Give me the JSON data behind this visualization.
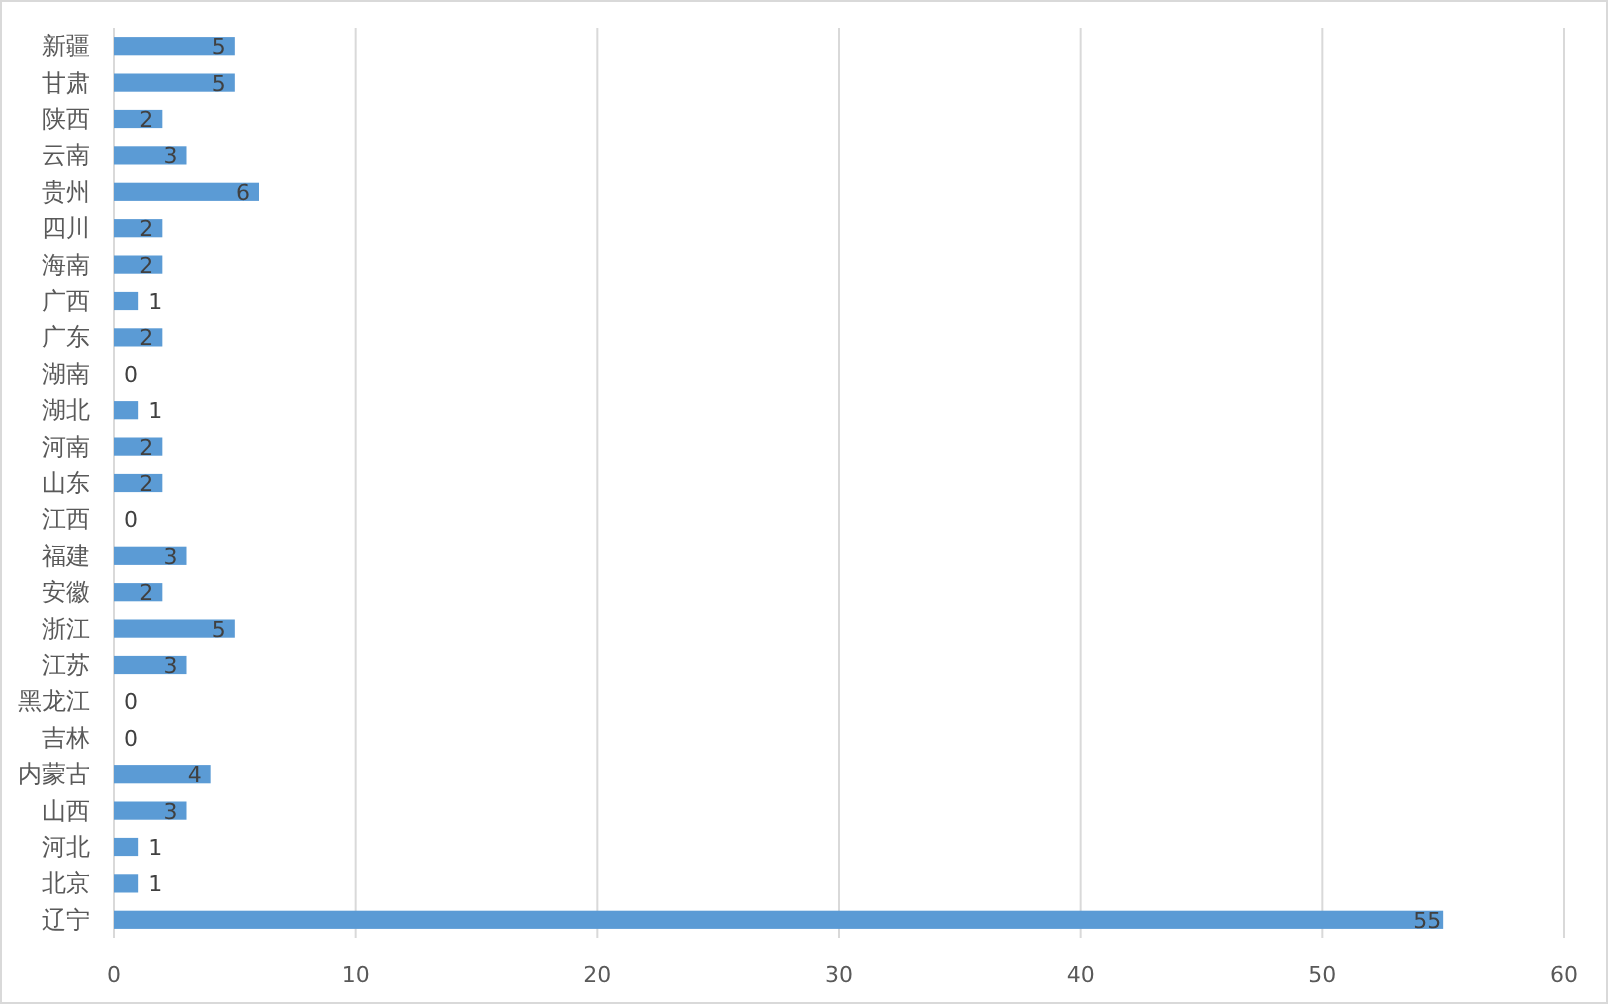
{
  "chart_data": {
    "type": "bar",
    "orientation": "horizontal",
    "categories": [
      "新疆",
      "甘肃",
      "陕西",
      "云南",
      "贵州",
      "四川",
      "海南",
      "广西",
      "广东",
      "湖南",
      "湖北",
      "河南",
      "山东",
      "江西",
      "福建",
      "安徽",
      "浙江",
      "江苏",
      "黑龙江",
      "吉林",
      "内蒙古",
      "山西",
      "河北",
      "北京",
      "辽宁"
    ],
    "values": [
      5,
      5,
      2,
      3,
      6,
      2,
      2,
      1,
      2,
      0,
      1,
      2,
      2,
      0,
      3,
      2,
      5,
      3,
      0,
      0,
      4,
      3,
      1,
      1,
      55
    ],
    "color": "#5b9bd5",
    "xlim": [
      0,
      60
    ],
    "xticks": [
      0,
      10,
      20,
      30,
      40,
      50,
      60
    ],
    "grid": "x",
    "data_labels": true
  }
}
